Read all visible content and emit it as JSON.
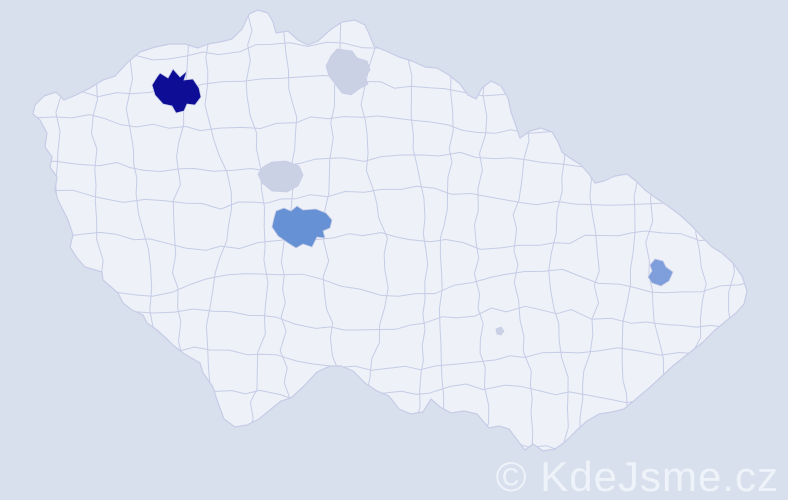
{
  "map": {
    "background_color": "#d9e0ed",
    "land_color": "#eef1f8",
    "border_color": "#c6cce6",
    "regions": [
      {
        "id": "district-northwest",
        "color": "#0d0d96"
      },
      {
        "id": "district-north",
        "color": "#cbd1e4"
      },
      {
        "id": "district-center-capital",
        "color": "#cbd1e4"
      },
      {
        "id": "district-center-south",
        "color": "#6691d5"
      },
      {
        "id": "district-east",
        "color": "#7e9edc"
      },
      {
        "id": "district-south-central-dot",
        "color": "#cbd1e4"
      }
    ]
  },
  "watermark": {
    "text": "© KdeJsme.cz",
    "color": "#eef2f9"
  }
}
